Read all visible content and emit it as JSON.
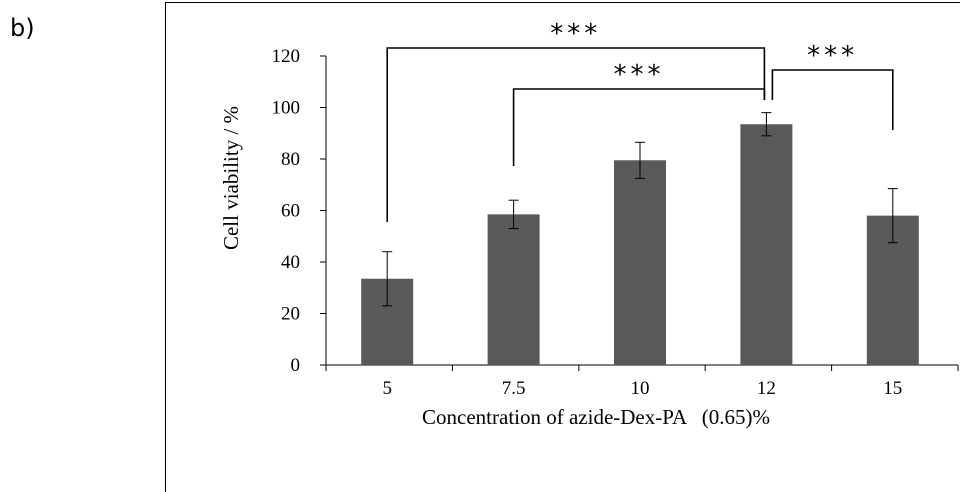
{
  "panel_label": "b)",
  "chart_data": {
    "type": "bar",
    "categories": [
      "5",
      "7.5",
      "10",
      "12",
      "15"
    ],
    "values": [
      33.5,
      58.5,
      79.5,
      93.5,
      58
    ],
    "errors": [
      10.5,
      5.5,
      7,
      4.5,
      10.5
    ],
    "xlabel": "Concentration of azide-Dex-PA   (0.65)%",
    "ylabel": "Cell viability / %",
    "ylim": [
      0,
      120
    ],
    "yticks": [
      0,
      20,
      40,
      60,
      80,
      100,
      120
    ],
    "grid": false,
    "bar_color": "#595959",
    "significance": [
      {
        "from": "5",
        "to": "12",
        "label": "***"
      },
      {
        "from": "7.5",
        "to": "12",
        "label": "***"
      },
      {
        "from": "12",
        "to": "15",
        "label": "***"
      }
    ]
  }
}
